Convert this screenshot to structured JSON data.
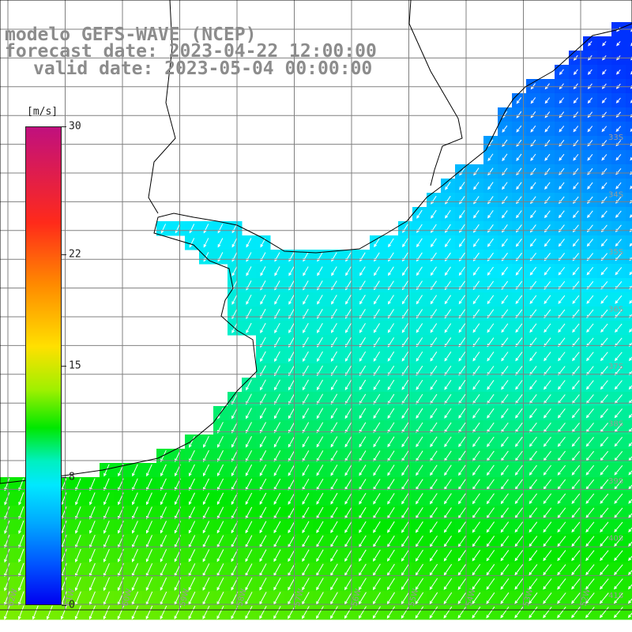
{
  "map_title": {
    "line1": "modelo GEFS-WAVE (NCEP)",
    "line2": "forecast date: 2023-04-22 12:00:00",
    "line3": "valid date: 2023-05-04 00:00:00"
  },
  "colorbar": {
    "unit": "[m/s]",
    "ticks": [
      "30",
      "22",
      "15",
      "8",
      "0"
    ],
    "tick_values": [
      30,
      22,
      15,
      8,
      0
    ],
    "range": [
      0,
      30
    ],
    "colors": [
      "#0000f0",
      "#0050ff",
      "#00a8ff",
      "#00e8ff",
      "#00f0c0",
      "#00e800",
      "#a0f000",
      "#ffe000",
      "#ff8a00",
      "#ff2a1a",
      "#c0107e"
    ]
  },
  "map": {
    "lat_labels": [
      "33S",
      "34S",
      "35S",
      "36S",
      "37S",
      "38S",
      "39S",
      "40S",
      "41S"
    ],
    "lon_labels": [
      "62W",
      "61W",
      "60W",
      "59W",
      "58W",
      "57W",
      "56W",
      "55W",
      "54W",
      "53W",
      "52W"
    ],
    "grid_color": "#808080",
    "coast_color": "#000000",
    "arrow_color": "#ffffff"
  }
}
